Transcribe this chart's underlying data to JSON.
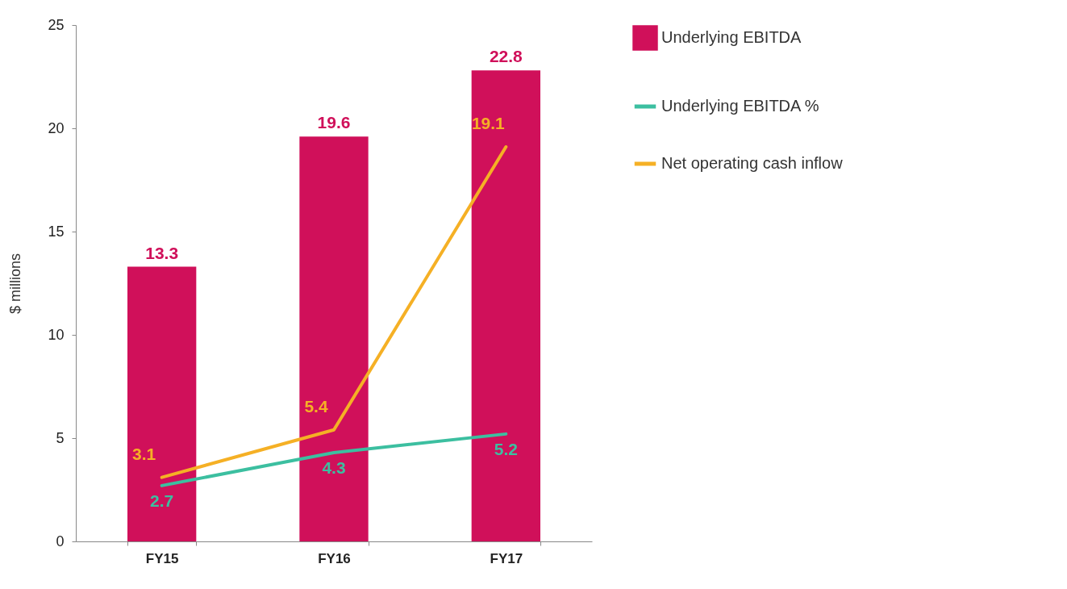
{
  "chart_data": {
    "type": "bar",
    "ylabel": "$ millions",
    "categories": [
      "FY15",
      "FY16",
      "FY17"
    ],
    "series": [
      {
        "name": "Underlying EBITDA",
        "color": "#d0105a",
        "values": [
          13.3,
          19.6,
          22.8
        ]
      },
      {
        "name": "Underlying EBITDA %",
        "type": "line",
        "color": "#3cbfa0",
        "values": [
          2.7,
          4.3,
          5.2
        ]
      },
      {
        "name": "Net operating cash inflow",
        "type": "line",
        "color": "#f5b025",
        "values": [
          3.1,
          5.4,
          19.1
        ]
      }
    ],
    "ylim": [
      0,
      25
    ],
    "yticks": [
      0,
      5,
      10,
      15,
      20,
      25
    ],
    "grid": false,
    "legend": "right",
    "data_labels": true
  }
}
